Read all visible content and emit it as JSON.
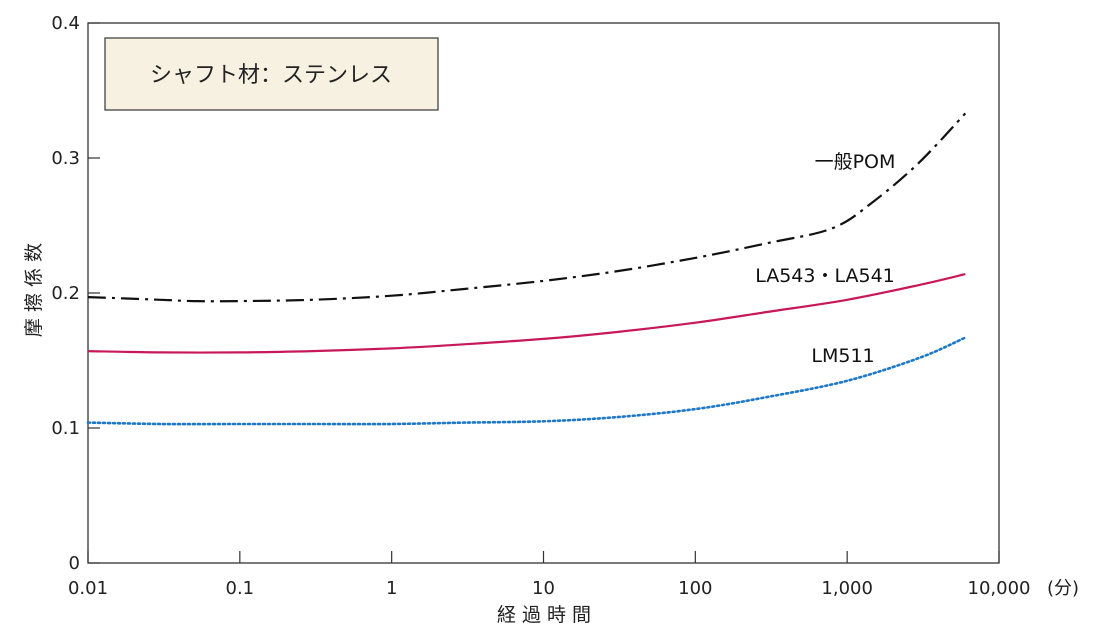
{
  "chart_data": {
    "type": "line",
    "note": "シャフト材：ステンレス",
    "xlabel": "経 過 時 間",
    "ylabel": "摩 擦 係 数",
    "x_unit": "(分)",
    "x_scale": "log",
    "xlim": [
      0.01,
      10000
    ],
    "ylim": [
      0,
      0.4
    ],
    "x_ticks": [
      0.01,
      0.1,
      1,
      10,
      100,
      1000,
      10000
    ],
    "x_tick_labels": [
      "0.01",
      "0.1",
      "1",
      "10",
      "100",
      "1,000",
      "10,000"
    ],
    "y_ticks": [
      0,
      0.1,
      0.2,
      0.3,
      0.4
    ],
    "y_tick_labels": [
      "0",
      "0.1",
      "0.2",
      "0.3",
      "0.4"
    ],
    "grid": false,
    "series": [
      {
        "name": "一般POM",
        "color": "#111111",
        "line_style": "dash-dot",
        "x": [
          0.01,
          0.03,
          0.05,
          0.1,
          0.3,
          1,
          3,
          10,
          30,
          100,
          300,
          800,
          1500,
          3000,
          6000
        ],
        "y": [
          0.197,
          0.195,
          0.194,
          0.194,
          0.195,
          0.198,
          0.203,
          0.209,
          0.216,
          0.226,
          0.237,
          0.248,
          0.268,
          0.297,
          0.333
        ]
      },
      {
        "name": "LA543・LA541",
        "color": "#c8185a",
        "line_style": "solid",
        "x": [
          0.01,
          0.03,
          0.1,
          0.3,
          1,
          3,
          10,
          30,
          100,
          300,
          1000,
          3000,
          6000
        ],
        "y": [
          0.157,
          0.156,
          0.156,
          0.157,
          0.159,
          0.162,
          0.166,
          0.171,
          0.178,
          0.186,
          0.195,
          0.206,
          0.214
        ]
      },
      {
        "name": "LM511",
        "color": "#1e78c8",
        "line_style": "dotted",
        "x": [
          0.01,
          0.03,
          0.1,
          0.3,
          1,
          3,
          10,
          30,
          100,
          300,
          1000,
          3000,
          6000
        ],
        "y": [
          0.104,
          0.103,
          0.103,
          0.103,
          0.103,
          0.104,
          0.105,
          0.108,
          0.114,
          0.123,
          0.135,
          0.152,
          0.167
        ]
      }
    ]
  }
}
